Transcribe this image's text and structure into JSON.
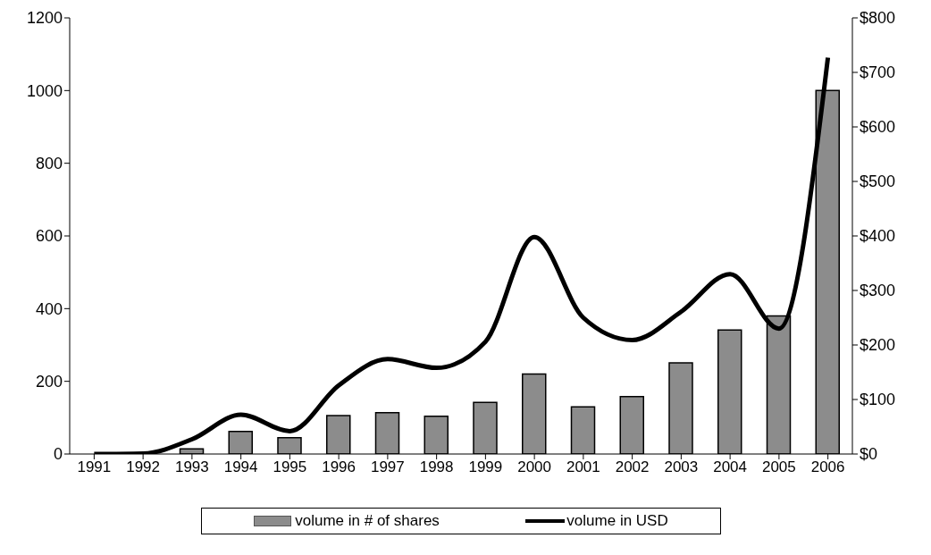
{
  "chart_data": {
    "type": "bar",
    "categories": [
      "1991",
      "1992",
      "1993",
      "1994",
      "1995",
      "1996",
      "1997",
      "1998",
      "1999",
      "2000",
      "2001",
      "2002",
      "2003",
      "2004",
      "2005",
      "2006"
    ],
    "series": [
      {
        "name": "volume in # of shares",
        "color": "#8c8c8c",
        "values": [
          0,
          0,
          14,
          62,
          45,
          106,
          114,
          104,
          142,
          220,
          130,
          158,
          251,
          341,
          380,
          1000
        ]
      },
      {
        "name": "volume in USD",
        "type": "line",
        "axis": "y2",
        "color": "#000000",
        "values": [
          0,
          1,
          27,
          72,
          42,
          126,
          174,
          158,
          206,
          398,
          250,
          209,
          261,
          330,
          230,
          727
        ]
      }
    ],
    "ylim": [
      0,
      1200
    ],
    "yticks": [
      0,
      200,
      400,
      600,
      800,
      1000,
      1200
    ],
    "y2lim": [
      0,
      800
    ],
    "y2ticks": [
      {
        "value": 0,
        "label": "$0"
      },
      {
        "value": 100,
        "label": "$100"
      },
      {
        "value": 200,
        "label": "$200"
      },
      {
        "value": 300,
        "label": "$300"
      },
      {
        "value": 400,
        "label": "$400"
      },
      {
        "value": 500,
        "label": "$500"
      },
      {
        "value": 600,
        "label": "$600"
      },
      {
        "value": 700,
        "label": "$700"
      },
      {
        "value": 800,
        "label": "$800"
      }
    ],
    "grid": false,
    "legend": "bottom",
    "marker": "none",
    "line_style": "solid"
  }
}
